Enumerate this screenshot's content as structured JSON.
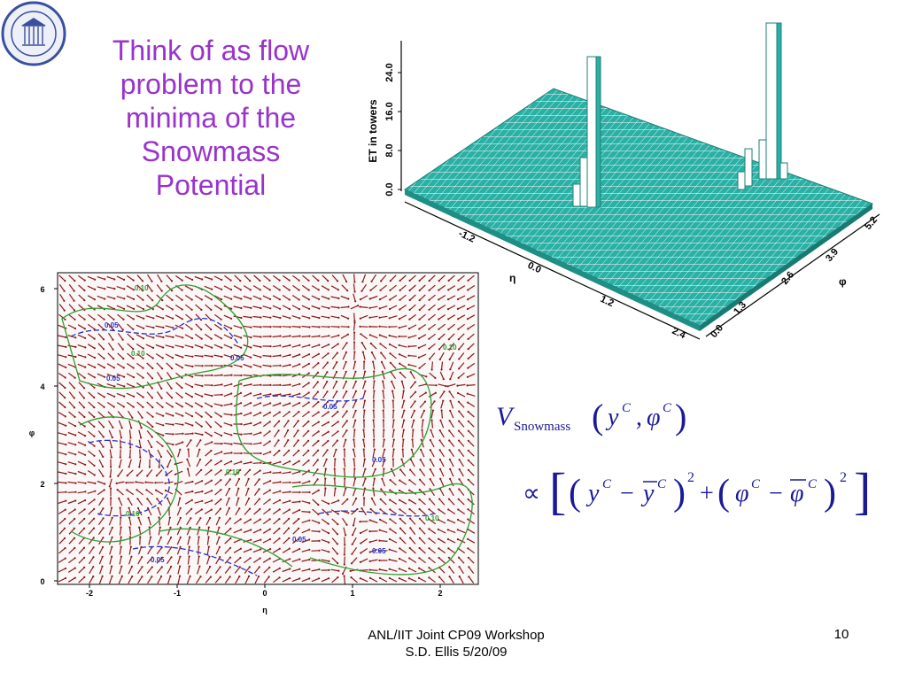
{
  "slide": {
    "title_lines": [
      "Think of as flow",
      "problem to the",
      "minima of the",
      "Snowmass",
      "Potential"
    ],
    "footer_line1": "ANL/IIT Joint CP09 Workshop",
    "footer_line2": "S.D. Ellis 5/20/09",
    "page_number": "10",
    "title_color": "#9933cc"
  },
  "logo": {
    "icon": "university-seal-icon",
    "color": "#3a4fa0"
  },
  "lego_plot": {
    "z_label": "ET in towers",
    "z_ticks": [
      "0.0",
      "8.0",
      "16.0",
      "24.0"
    ],
    "eta_label": "η",
    "eta_ticks": [
      "-1.2",
      "0.0",
      "1.2",
      "2.4"
    ],
    "phi_label": "φ",
    "phi_ticks": [
      "0.0",
      "1.3",
      "2.6",
      "3.9",
      "5.2"
    ],
    "surface_color": "#2ab0a5"
  },
  "vector_plot": {
    "xlabel": "η",
    "ylabel": "φ",
    "x_ticks": [
      "-2",
      "-1",
      "0",
      "1",
      "2"
    ],
    "y_ticks": [
      "0",
      "2",
      "4",
      "6"
    ],
    "arrow_color": "#8b1a1a",
    "contour_green": "#2e9e2e",
    "contour_blue": "#2233cc",
    "contour_labels_green": [
      "0.10",
      "0.10",
      "0.10",
      "0.10",
      "0.10",
      "0.10"
    ],
    "contour_labels_blue": [
      "0.05",
      "0.05",
      "0.05",
      "0.05",
      "0.05",
      "0.05",
      "0.05",
      "0.05"
    ]
  },
  "formula": {
    "V": "V",
    "subscript": "Snowmass",
    "y": "y",
    "phi": "φ",
    "sup": "C",
    "proportional": "∝",
    "minus": "−",
    "plus": "+",
    "comma": ",",
    "square": "2",
    "ybar": "y",
    "phibar": "φ"
  }
}
